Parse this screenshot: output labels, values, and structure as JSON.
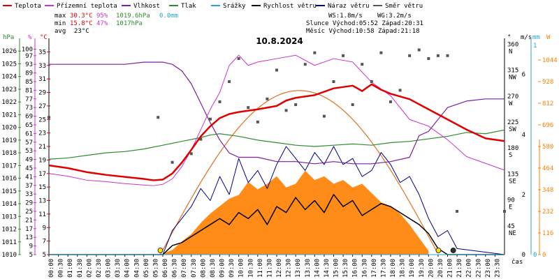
{
  "legend": [
    {
      "label": "Teplota",
      "color": "#e00000"
    },
    {
      "label": "Přízemní teplota",
      "color": "#cc33cc"
    },
    {
      "label": "Vlhkost",
      "color": "#7b1fa2"
    },
    {
      "label": "Tlak",
      "color": "#2e8b2e"
    },
    {
      "label": "Srážky",
      "color": "#29a3cc"
    },
    {
      "label": "Rychlost větru",
      "color": "#000000"
    },
    {
      "label": "Náraz větru",
      "color": "#00008b"
    },
    {
      "label": "Směr větru",
      "color": "#555555"
    }
  ],
  "stats": {
    "max": {
      "label": "max",
      "temp": "30.3°C",
      "hum": "95%",
      "press": "1019.6hPa",
      "rain": "0.0mm"
    },
    "min": {
      "label": "min",
      "temp": "15.8°C",
      "hum": "47%",
      "press": "1017hPa"
    },
    "avg": {
      "label": "avg",
      "temp": "23°C"
    },
    "ws": "WS:1.8m/s",
    "wg": "WG:3.2m/s",
    "sun": "Slunce Východ:05:52  Západ:20:31",
    "moon": "Měsíc  Východ:10:58  Západ:21:18"
  },
  "chart_data": {
    "type": "line",
    "title": "10.8.2024",
    "xlabel": "čas",
    "x_ticks": [
      "00:00",
      "00:30",
      "01:00",
      "01:30",
      "02:00",
      "02:30",
      "03:00",
      "03:30",
      "04:00",
      "04:30",
      "05:00",
      "05:30",
      "06:00",
      "06:30",
      "07:00",
      "07:30",
      "08:00",
      "08:30",
      "09:00",
      "09:30",
      "10:00",
      "10:30",
      "11:00",
      "11:30",
      "12:00",
      "12:30",
      "13:00",
      "13:30",
      "14:00",
      "14:30",
      "15:00",
      "15:30",
      "16:00",
      "16:30",
      "17:00",
      "17:30",
      "18:00",
      "18:30",
      "19:00",
      "19:30",
      "20:00",
      "20:30",
      "21:00",
      "21:30",
      "22:00",
      "22:30",
      "23:00",
      "23:30"
    ],
    "axes": {
      "pressure_hpa": {
        "label": "hPa",
        "color": "#2e8b2e",
        "range": [
          1010,
          1027
        ],
        "ticks": [
          1010,
          1011,
          1012,
          1013,
          1014,
          1015,
          1016,
          1017,
          1018,
          1019,
          1020,
          1021,
          1022,
          1023,
          1024,
          1025,
          1026
        ]
      },
      "humidity_pct": {
        "label": "%",
        "color": "#cc33cc",
        "range": [
          5,
          105
        ],
        "ticks": [
          5,
          9,
          13,
          17,
          21,
          25,
          29,
          33,
          37,
          41,
          45,
          49,
          53,
          57,
          61,
          65,
          69,
          73,
          77,
          81,
          85,
          89,
          93,
          97,
          100
        ]
      },
      "temperature_c": {
        "label": "°C",
        "color": "#e00000",
        "range": [
          5,
          37
        ],
        "ticks": [
          5,
          7,
          9,
          11,
          13,
          15,
          17,
          19,
          21,
          23,
          25,
          27,
          29,
          31,
          33,
          35
        ]
      },
      "direction_deg": {
        "label": "°",
        "ticks": [
          "45 NE",
          "90 E",
          "135 SE",
          "180 S",
          "225 SW",
          "270 W",
          "315 NW",
          "360 N"
        ]
      },
      "wind_ms": {
        "label": "m/s",
        "ticks": [
          "0",
          "2",
          "4",
          "6"
        ]
      },
      "rain_mm": {
        "label": "mm",
        "ticks": [
          "0",
          "1"
        ]
      },
      "radiation_wm2": {
        "label": "W",
        "color": "#ff8000",
        "ticks": [
          "0",
          "116",
          "232",
          "348",
          "464",
          "580",
          "696",
          "812",
          "928",
          "1044"
        ]
      }
    },
    "series": [
      {
        "name": "Teplota",
        "color": "#e00000",
        "unit": "°C",
        "x": [
          0,
          1,
          2,
          3,
          4,
          5,
          5.5,
          6,
          6.5,
          7,
          7.5,
          8,
          8.5,
          9,
          9.5,
          10,
          11,
          12,
          12.5,
          13,
          14,
          15,
          16,
          16.5,
          17,
          17.5,
          18,
          19,
          20,
          21,
          22,
          23,
          24
        ],
        "y": [
          18.2,
          17.8,
          17.2,
          16.8,
          16.5,
          16.2,
          16.0,
          16.1,
          17.0,
          18.6,
          20.5,
          22.5,
          24.0,
          25.2,
          25.8,
          26.1,
          26.5,
          27.0,
          27.8,
          28.2,
          28.6,
          29.6,
          30.0,
          29.2,
          30.2,
          29.4,
          28.8,
          28.0,
          26.5,
          25.0,
          23.5,
          22.2,
          21.8
        ]
      },
      {
        "name": "Přízemní teplota",
        "color": "#cc33cc",
        "unit": "°C",
        "x": [
          0,
          1,
          2,
          3,
          4,
          5,
          5.5,
          6,
          6.5,
          7,
          7.5,
          8,
          8.5,
          9,
          9.5,
          10,
          10.5,
          11,
          12,
          13,
          14,
          15,
          16,
          17,
          18,
          19,
          20,
          21,
          22,
          23,
          24
        ],
        "y": [
          17.0,
          16.6,
          16.0,
          15.8,
          15.5,
          15.3,
          15.2,
          15.4,
          16.2,
          18.0,
          20.5,
          23.5,
          26.5,
          29.0,
          33.0,
          34.5,
          33.0,
          33.5,
          34.0,
          34.5,
          33.0,
          34.0,
          33.5,
          30.5,
          28.5,
          25.0,
          24.0,
          22.0,
          19.5,
          18.5,
          17.5
        ]
      },
      {
        "name": "Vlhkost",
        "color": "#7b1fa2",
        "unit": "%",
        "x": [
          0,
          1,
          2,
          3,
          4,
          5,
          5.5,
          6,
          6.5,
          7,
          7.5,
          8,
          8.5,
          9,
          9.5,
          10,
          11,
          12,
          13,
          14,
          15,
          16,
          17,
          18,
          19,
          19.5,
          20,
          21,
          22,
          23,
          24
        ],
        "y": [
          93,
          93,
          93,
          93,
          93,
          94,
          94,
          94,
          93,
          90,
          84,
          75,
          66,
          58,
          52,
          50,
          50,
          48,
          48,
          47,
          48,
          47,
          47,
          48,
          50,
          60,
          62,
          73,
          76,
          77,
          77
        ]
      },
      {
        "name": "Tlak",
        "color": "#2e8b2e",
        "unit": "hPa",
        "x": [
          0,
          1,
          2,
          3,
          4,
          5,
          6,
          7,
          8,
          8.5,
          9,
          10,
          11,
          12,
          13,
          14,
          15,
          16,
          17,
          18,
          19,
          20,
          21,
          22,
          23,
          24
        ],
        "y": [
          1017.5,
          1017.6,
          1017.8,
          1018.0,
          1018.1,
          1018.3,
          1018.6,
          1018.9,
          1019.2,
          1019.4,
          1019.5,
          1019.3,
          1019.0,
          1018.8,
          1018.6,
          1018.5,
          1018.6,
          1018.7,
          1018.6,
          1018.8,
          1018.9,
          1019.1,
          1019.3,
          1019.6,
          1019.5,
          1019.8
        ]
      },
      {
        "name": "Srážky",
        "color": "#29a3cc",
        "unit": "mm",
        "x": [
          0,
          24
        ],
        "y": [
          0,
          0
        ]
      },
      {
        "name": "Rychlost větru",
        "color": "#000000",
        "unit": "m/s",
        "x": [
          0,
          6,
          6.5,
          7,
          7.5,
          8,
          8.5,
          9,
          9.5,
          10,
          10.5,
          11,
          11.5,
          12,
          12.5,
          13,
          13.5,
          14,
          14.5,
          15,
          15.5,
          16,
          16.5,
          17,
          17.5,
          18,
          18.5,
          19,
          19.5,
          20,
          20.5,
          21,
          24
        ],
        "y": [
          0,
          0,
          0.3,
          0.4,
          0.6,
          0.8,
          1.0,
          1.2,
          1.0,
          1.4,
          1.2,
          1.5,
          1.0,
          1.6,
          1.4,
          1.9,
          1.5,
          1.8,
          1.4,
          2.0,
          1.6,
          1.8,
          1.3,
          1.5,
          1.7,
          1.6,
          1.4,
          1.2,
          1.0,
          0.7,
          0.2,
          0,
          0
        ]
      },
      {
        "name": "Náraz větru",
        "color": "#00008b",
        "unit": "m/s",
        "x": [
          0,
          6,
          6.5,
          7,
          7.5,
          8,
          8.5,
          9,
          9.5,
          10,
          10.5,
          11,
          11.5,
          12,
          12.5,
          13,
          13.5,
          14,
          14.5,
          15,
          15.5,
          16,
          16.5,
          17,
          17.5,
          18,
          18.5,
          19,
          19.5,
          20,
          20.5,
          21,
          21.5,
          24
        ],
        "y": [
          0,
          0,
          0.8,
          1.2,
          1.6,
          2.2,
          1.8,
          2.6,
          2.0,
          3.2,
          2.4,
          2.8,
          2.2,
          3.0,
          3.6,
          3.2,
          2.8,
          3.4,
          3.0,
          3.6,
          3.0,
          3.2,
          2.6,
          2.8,
          3.4,
          3.0,
          2.4,
          2.6,
          2.0,
          1.2,
          0.6,
          0.8,
          0.2,
          0
        ]
      },
      {
        "name": "Směr větru",
        "color": "#555555",
        "unit": "°",
        "x": [
          0,
          5.75,
          6.5,
          7.5,
          8,
          8.5,
          9,
          9.5,
          10,
          10.5,
          11,
          11.5,
          12,
          12.5,
          13,
          13.5,
          14,
          14.5,
          15,
          15.5,
          16,
          16.5,
          17,
          17.5,
          18,
          18.5,
          19,
          19.5,
          20,
          20.5,
          21,
          21.5,
          24
        ],
        "y": [
          238,
          238,
          160,
          175,
          200,
          235,
          265,
          300,
          340,
          255,
          230,
          270,
          320,
          250,
          260,
          330,
          350,
          240,
          300,
          345,
          260,
          330,
          300,
          350,
          265,
          285,
          345,
          355,
          340,
          345,
          345,
          75,
          75
        ]
      },
      {
        "name": "Sluneční záření",
        "color": "#ff8000",
        "unit": "W/m²",
        "x": [
          6,
          6.5,
          7,
          7.5,
          8,
          8.5,
          9,
          9.5,
          10,
          10.5,
          11,
          11.5,
          12,
          12.5,
          13,
          13.5,
          14,
          14.5,
          15,
          15.5,
          16,
          16.5,
          17,
          17.5,
          18,
          18.5,
          19,
          19.5,
          20
        ],
        "y": [
          5,
          25,
          70,
          110,
          170,
          220,
          260,
          300,
          320,
          390,
          350,
          380,
          420,
          360,
          380,
          450,
          400,
          420,
          380,
          400,
          360,
          380,
          330,
          280,
          260,
          220,
          160,
          90,
          20
        ]
      }
    ]
  }
}
